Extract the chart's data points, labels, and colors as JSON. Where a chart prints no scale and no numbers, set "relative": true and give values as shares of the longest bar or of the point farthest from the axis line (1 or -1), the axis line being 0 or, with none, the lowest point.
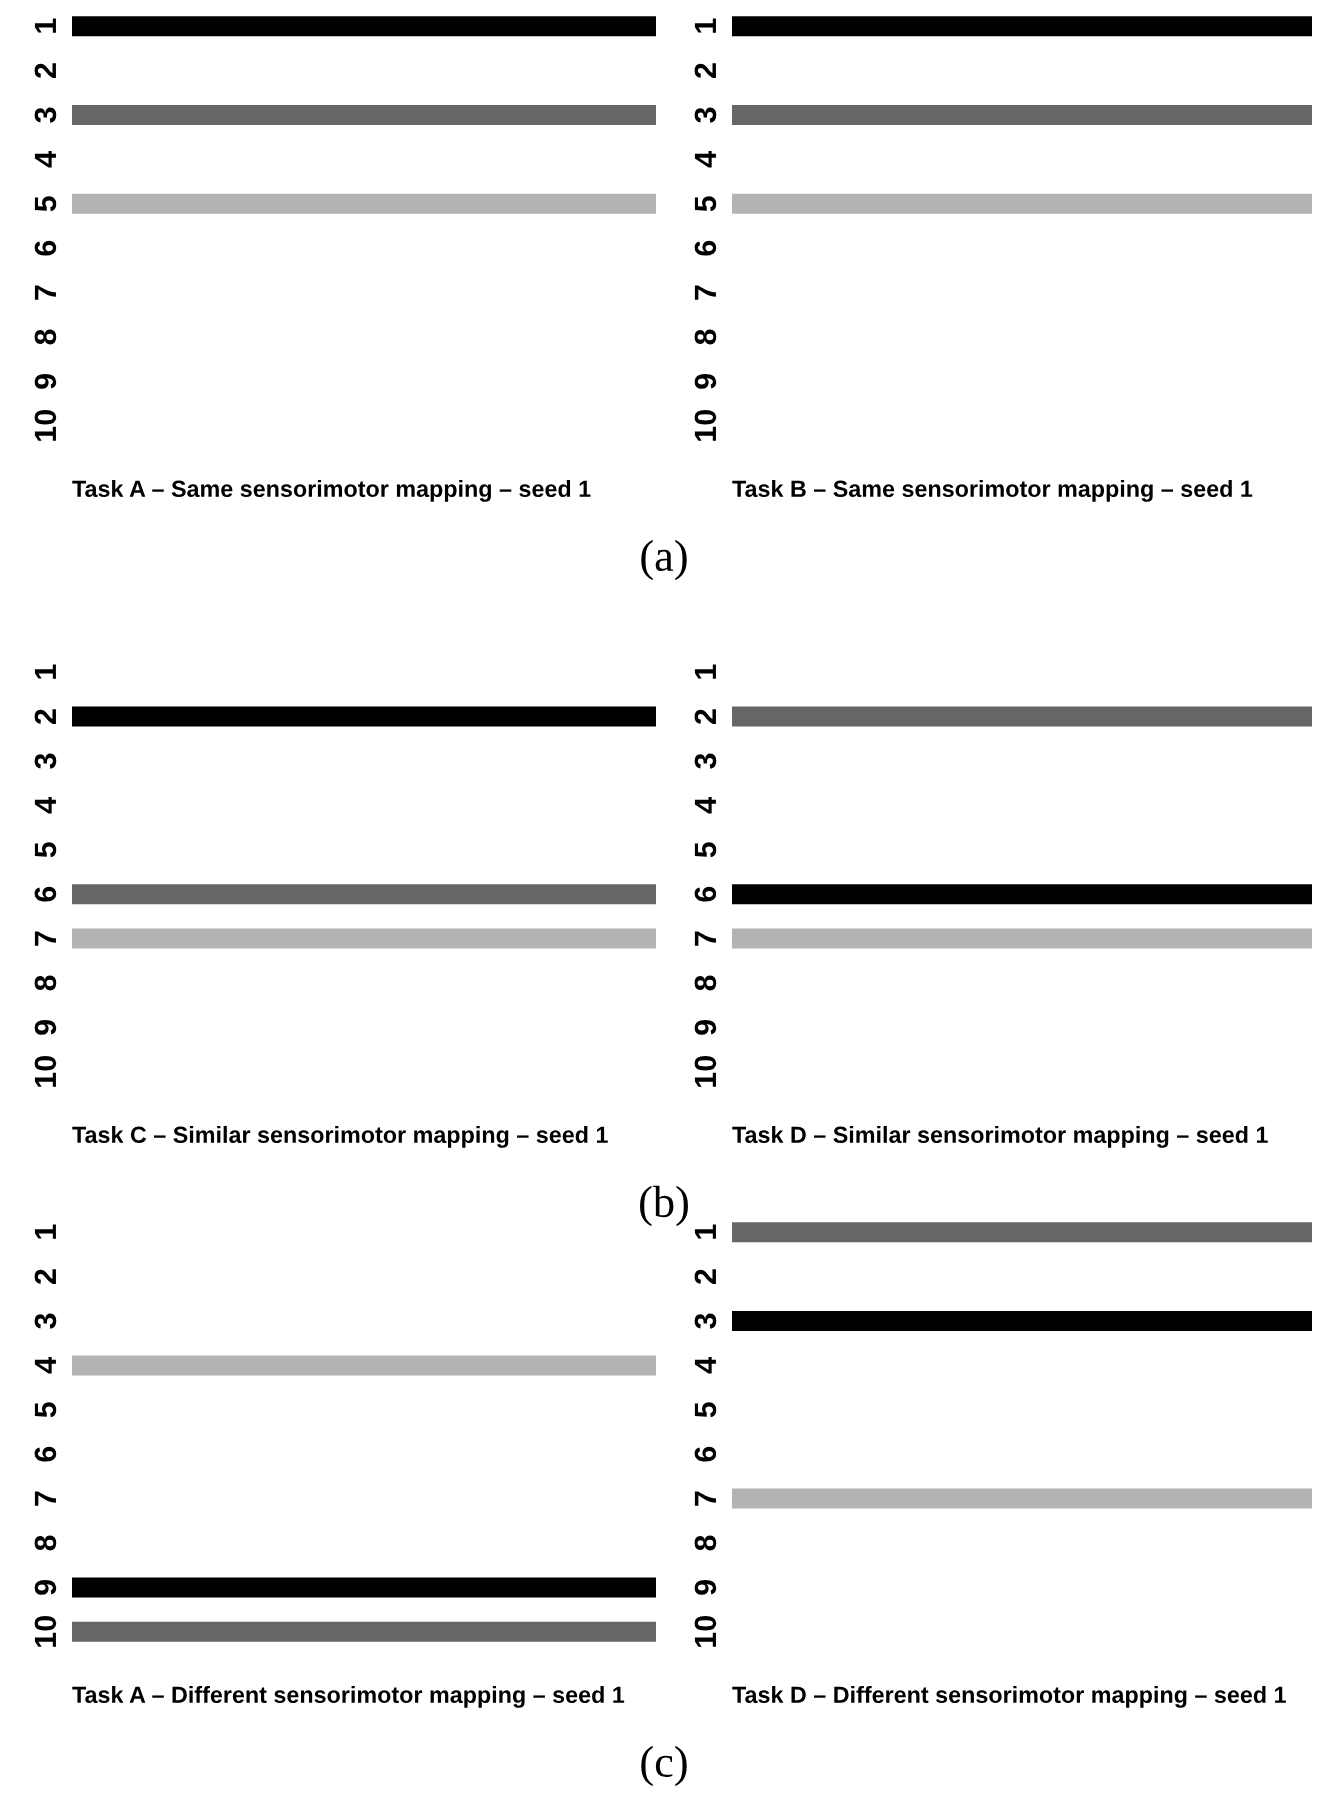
{
  "chart_data": [
    {
      "type": "bar",
      "orientation": "horizontal",
      "relative": true,
      "title": "Task A – Same sensorimotor mapping – seed 1",
      "categories": [
        "1",
        "2",
        "3",
        "4",
        "5",
        "6",
        "7",
        "8",
        "9",
        "10"
      ],
      "values": [
        1,
        null,
        1,
        null,
        1,
        null,
        null,
        null,
        null,
        null
      ],
      "colors": [
        "#000000",
        null,
        "#666666",
        null,
        "#b3b3b3",
        null,
        null,
        null,
        null,
        null
      ],
      "annotations": [
        "(a)"
      ],
      "tick_labels": "y",
      "grid": false,
      "legend": false
    },
    {
      "type": "bar",
      "orientation": "horizontal",
      "relative": true,
      "title": "Task B – Same sensorimotor mapping – seed 1",
      "categories": [
        "1",
        "2",
        "3",
        "4",
        "5",
        "6",
        "7",
        "8",
        "9",
        "10"
      ],
      "values": [
        1,
        null,
        1,
        null,
        1,
        null,
        null,
        null,
        null,
        null
      ],
      "colors": [
        "#000000",
        null,
        "#666666",
        null,
        "#b3b3b3",
        null,
        null,
        null,
        null,
        null
      ],
      "tick_labels": "y",
      "grid": false,
      "legend": false
    },
    {
      "type": "bar",
      "orientation": "horizontal",
      "relative": true,
      "title": "Task C – Similar sensorimotor mapping – seed 1",
      "categories": [
        "1",
        "2",
        "3",
        "4",
        "5",
        "6",
        "7",
        "8",
        "9",
        "10"
      ],
      "values": [
        null,
        1,
        null,
        null,
        null,
        1,
        1,
        null,
        null,
        null
      ],
      "colors": [
        null,
        "#000000",
        null,
        null,
        null,
        "#666666",
        "#b3b3b3",
        null,
        null,
        null
      ],
      "annotations": [
        "(b)"
      ],
      "tick_labels": "y",
      "grid": false,
      "legend": false
    },
    {
      "type": "bar",
      "orientation": "horizontal",
      "relative": true,
      "title": "Task D – Similar sensorimotor mapping – seed 1",
      "categories": [
        "1",
        "2",
        "3",
        "4",
        "5",
        "6",
        "7",
        "8",
        "9",
        "10"
      ],
      "values": [
        null,
        1,
        null,
        null,
        null,
        1,
        1,
        null,
        null,
        null
      ],
      "colors": [
        null,
        "#666666",
        null,
        null,
        null,
        "#000000",
        "#b3b3b3",
        null,
        null,
        null
      ],
      "tick_labels": "y",
      "grid": false,
      "legend": false
    },
    {
      "type": "bar",
      "orientation": "horizontal",
      "relative": true,
      "title": "Task A – Different sensorimotor mapping – seed 1",
      "categories": [
        "1",
        "2",
        "3",
        "4",
        "5",
        "6",
        "7",
        "8",
        "9",
        "10"
      ],
      "values": [
        null,
        null,
        null,
        1,
        null,
        null,
        null,
        null,
        1,
        1
      ],
      "colors": [
        null,
        null,
        null,
        "#b3b3b3",
        null,
        null,
        null,
        null,
        "#000000",
        "#666666"
      ],
      "annotations": [
        "(c)"
      ],
      "tick_labels": "y",
      "grid": false,
      "legend": false
    },
    {
      "type": "bar",
      "orientation": "horizontal",
      "relative": true,
      "title": "Task D – Different sensorimotor mapping – seed 1",
      "categories": [
        "1",
        "2",
        "3",
        "4",
        "5",
        "6",
        "7",
        "8",
        "9",
        "10"
      ],
      "values": [
        1,
        null,
        1,
        null,
        null,
        null,
        1,
        null,
        null,
        null
      ],
      "colors": [
        "#666666",
        null,
        "#000000",
        null,
        null,
        null,
        "#b3b3b3",
        null,
        null,
        null
      ],
      "tick_labels": "y",
      "grid": false,
      "legend": false
    }
  ]
}
